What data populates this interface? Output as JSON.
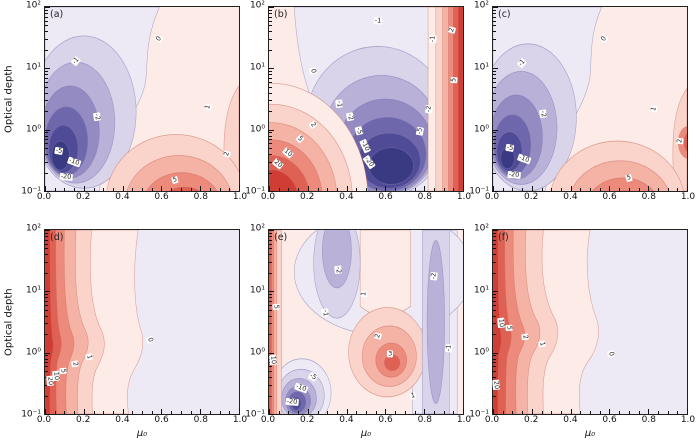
{
  "figure": {
    "y_axis_label": "Optical depth",
    "x_axis_label": "μ₀",
    "x_ticks": [
      "0.0",
      "0.2",
      "0.4",
      "0.6",
      "0.8",
      "1.0"
    ],
    "y_ticks": [
      "10²",
      "10¹",
      "10⁰",
      "10⁻¹"
    ],
    "panels": [
      {
        "letter": "(a)",
        "contour_labels": [
          {
            "v": "0",
            "mu0": 0.59,
            "tau": 30,
            "rot": -55
          },
          {
            "v": "-1",
            "mu0": 0.16,
            "tau": 13,
            "rot": -50
          },
          {
            "v": "-2",
            "mu0": 0.27,
            "tau": 1.6,
            "rot": 80
          },
          {
            "v": "-5",
            "mu0": 0.07,
            "tau": 0.45,
            "rot": 10
          },
          {
            "v": "-10",
            "mu0": 0.15,
            "tau": 0.3,
            "rot": 20
          },
          {
            "v": "-20",
            "mu0": 0.11,
            "tau": 0.17,
            "rot": 5
          },
          {
            "v": "1",
            "mu0": 0.84,
            "tau": 2.3,
            "rot": -75
          },
          {
            "v": "2",
            "mu0": 0.94,
            "tau": 0.4,
            "rot": -75
          },
          {
            "v": "5",
            "mu0": 0.67,
            "tau": 0.15,
            "rot": -15
          }
        ]
      },
      {
        "letter": "(b)",
        "contour_labels": [
          {
            "v": "20",
            "mu0": 0.045,
            "tau": 0.28,
            "rot": 40
          },
          {
            "v": "10",
            "mu0": 0.1,
            "tau": 0.42,
            "rot": 40
          },
          {
            "v": "5",
            "mu0": 0.16,
            "tau": 0.7,
            "rot": 45
          },
          {
            "v": "2",
            "mu0": 0.225,
            "tau": 1.2,
            "rot": 55
          },
          {
            "v": "0",
            "mu0": 0.225,
            "tau": 9,
            "rot": 80
          },
          {
            "v": "-1",
            "mu0": 0.36,
            "tau": 2.6,
            "rot": 85
          },
          {
            "v": "-1",
            "mu0": 0.56,
            "tau": 60,
            "rot": 5
          },
          {
            "v": "-2",
            "mu0": 0.42,
            "tau": 1.6,
            "rot": 80
          },
          {
            "v": "-5",
            "mu0": 0.465,
            "tau": 0.95,
            "rot": 75
          },
          {
            "v": "-10",
            "mu0": 0.495,
            "tau": 0.55,
            "rot": 65
          },
          {
            "v": "-20",
            "mu0": 0.515,
            "tau": 0.3,
            "rot": 55
          },
          {
            "v": "-5",
            "mu0": 0.78,
            "tau": 0.95,
            "rot": -80
          },
          {
            "v": "-2",
            "mu0": 0.825,
            "tau": 2.2,
            "rot": -85
          },
          {
            "v": "-1",
            "mu0": 0.845,
            "tau": 30,
            "rot": -85
          },
          {
            "v": "2",
            "mu0": 0.945,
            "tau": 42,
            "rot": -75
          },
          {
            "v": "5",
            "mu0": 0.955,
            "tau": 6.5,
            "rot": -85
          }
        ]
      },
      {
        "letter": "(c)",
        "contour_labels": [
          {
            "v": "0",
            "mu0": 0.57,
            "tau": 30,
            "rot": -55
          },
          {
            "v": "-1",
            "mu0": 0.15,
            "tau": 12,
            "rot": -50
          },
          {
            "v": "-2",
            "mu0": 0.26,
            "tau": 1.8,
            "rot": 80
          },
          {
            "v": "-5",
            "mu0": 0.09,
            "tau": 0.5,
            "rot": 10
          },
          {
            "v": "-10",
            "mu0": 0.16,
            "tau": 0.33,
            "rot": 20
          },
          {
            "v": "-20",
            "mu0": 0.11,
            "tau": 0.18,
            "rot": 5
          },
          {
            "v": "1",
            "mu0": 0.83,
            "tau": 2.2,
            "rot": -75
          },
          {
            "v": "2",
            "mu0": 0.965,
            "tau": 0.65,
            "rot": -85
          },
          {
            "v": "5",
            "mu0": 0.7,
            "tau": 0.16,
            "rot": -15
          }
        ]
      },
      {
        "letter": "(d)",
        "contour_labels": [
          {
            "v": "20",
            "mu0": 0.025,
            "tau": 0.35,
            "rot": 85
          },
          {
            "v": "10",
            "mu0": 0.055,
            "tau": 0.42,
            "rot": 85
          },
          {
            "v": "5",
            "mu0": 0.095,
            "tau": 0.5,
            "rot": 85
          },
          {
            "v": "2",
            "mu0": 0.155,
            "tau": 0.65,
            "rot": 80
          },
          {
            "v": "1",
            "mu0": 0.225,
            "tau": 0.85,
            "rot": 80
          },
          {
            "v": "0",
            "mu0": 0.54,
            "tau": 1.6,
            "rot": 70
          }
        ]
      },
      {
        "letter": "(e)",
        "contour_labels": [
          {
            "v": "5",
            "mu0": 0.035,
            "tau": 5.5,
            "rot": 85
          },
          {
            "v": "10",
            "mu0": 0.02,
            "tau": 0.75,
            "rot": 85
          },
          {
            "v": "-1",
            "mu0": 0.29,
            "tau": 4.5,
            "rot": 85
          },
          {
            "v": "-2",
            "mu0": 0.355,
            "tau": 22,
            "rot": 85
          },
          {
            "v": "-5",
            "mu0": 0.225,
            "tau": 0.4,
            "rot": 30
          },
          {
            "v": "-10",
            "mu0": 0.165,
            "tau": 0.27,
            "rot": 20
          },
          {
            "v": "-20",
            "mu0": 0.12,
            "tau": 0.155,
            "rot": 5
          },
          {
            "v": "1",
            "mu0": 0.49,
            "tau": 9,
            "rot": -85
          },
          {
            "v": "2",
            "mu0": 0.56,
            "tau": 1.9,
            "rot": -75
          },
          {
            "v": "3",
            "mu0": 0.625,
            "tau": 0.95,
            "rot": 0
          },
          {
            "v": "-2",
            "mu0": 0.85,
            "tau": 18,
            "rot": -85
          },
          {
            "v": "-1",
            "mu0": 0.93,
            "tau": 1.2,
            "rot": -85
          },
          {
            "v": "1",
            "mu0": 0.74,
            "tau": 0.2,
            "rot": -10
          }
        ]
      },
      {
        "letter": "(f)",
        "contour_labels": [
          {
            "v": "20",
            "mu0": 0.015,
            "tau": 0.3,
            "rot": 85
          },
          {
            "v": "10",
            "mu0": 0.04,
            "tau": 3.0,
            "rot": 85
          },
          {
            "v": "5",
            "mu0": 0.085,
            "tau": 2.5,
            "rot": 85
          },
          {
            "v": "2",
            "mu0": 0.165,
            "tau": 1.8,
            "rot": 80
          },
          {
            "v": "1",
            "mu0": 0.25,
            "tau": 1.4,
            "rot": 80
          },
          {
            "v": "0",
            "mu0": 0.61,
            "tau": 0.95,
            "rot": 75
          }
        ]
      }
    ]
  },
  "chart_data": [
    {
      "panel": "(a)",
      "type": "contour",
      "xlabel": "μ₀",
      "x_range": [
        0,
        1
      ],
      "ylabel": "Optical depth",
      "y_range": [
        0.1,
        100
      ],
      "y_scale": "log",
      "labeled_levels": [
        -20,
        -10,
        -5,
        -2,
        -1,
        0,
        1,
        2,
        5
      ],
      "palette": {
        "positive": "red",
        "negative": "blue-purple",
        "near_zero": "pale"
      },
      "features": [
        "negative lobe (−1 to −20) centered near μ₀≈0.05–0.2, τ≈0.2–1, extending up-left",
        "positive lobe (1 to 5) near μ₀≈0.6–0.9, τ<0.5",
        "zero contour runs from top edge at μ₀≈0.6 down toward bottom-left"
      ]
    },
    {
      "panel": "(b)",
      "type": "contour",
      "xlabel": "μ₀",
      "x_range": [
        0,
        1
      ],
      "ylabel": "Optical depth",
      "y_range": [
        0.1,
        100
      ],
      "y_scale": "log",
      "labeled_levels": [
        -20,
        -10,
        -5,
        -2,
        -1,
        0,
        2,
        5,
        10,
        20
      ],
      "palette": {
        "positive": "red",
        "negative": "blue-purple",
        "near_zero": "pale"
      },
      "features": [
        "strong positive core (5–20) in lower-left, μ₀<0.3, τ<1",
        "strong negative core (−5 to −20) at μ₀≈0.5–0.8, τ<1",
        "positive stripe (2–5) along right edge μ₀≈0.9–1.0, full height",
        "negative band (−1, −2) arching over the upper middle"
      ]
    },
    {
      "panel": "(c)",
      "type": "contour",
      "xlabel": "μ₀",
      "x_range": [
        0,
        1
      ],
      "ylabel": "Optical depth",
      "y_range": [
        0.1,
        100
      ],
      "y_scale": "log",
      "labeled_levels": [
        -20,
        -10,
        -5,
        -2,
        -1,
        0,
        1,
        2,
        5
      ],
      "palette": {
        "positive": "red",
        "negative": "blue-purple",
        "near_zero": "pale"
      },
      "features": [
        "similar to panel (a): negative lobe near μ₀≈0.05–0.2, τ≈0.2–1",
        "positive lobe (1–5) near μ₀≈0.6–0.9, τ<0.5, small maximum at right edge τ≈0.6",
        "zero contour from top edge μ₀≈0.57 to bottom-left"
      ]
    },
    {
      "panel": "(d)",
      "type": "contour",
      "xlabel": "μ₀",
      "x_range": [
        0,
        1
      ],
      "ylabel": "Optical depth",
      "y_range": [
        0.1,
        100
      ],
      "y_scale": "log",
      "labeled_levels": [
        0,
        1,
        2,
        5,
        10,
        20
      ],
      "palette": {
        "positive": "red",
        "near_zero": "pale"
      },
      "features": [
        "quasi-vertical bands decreasing from ≈20 at μ₀≈0 to 0 near μ₀≈0.5",
        "red bands bulge rightward (nose) around τ≈1–2",
        "field ≈0 (pale lavender) for μ₀>0.55"
      ]
    },
    {
      "panel": "(e)",
      "type": "contour",
      "xlabel": "μ₀",
      "x_range": [
        0,
        1
      ],
      "ylabel": "Optical depth",
      "y_range": [
        0.1,
        100
      ],
      "y_scale": "log",
      "labeled_levels": [
        -20,
        -10,
        -5,
        -2,
        -1,
        1,
        2,
        3,
        5,
        10
      ],
      "palette": {
        "positive": "red",
        "negative": "blue-purple",
        "near_zero": "pale"
      },
      "features": [
        "positive stripe (5–10) along the left edge, full height",
        "negative pocket (−5 to −20) near μ₀≈0.1–0.25, τ<0.4",
        "negative columns (−1, −2) near μ₀≈0.35 (upper) and μ₀≈0.8–0.9 (full height)",
        "positive cell (1–3) centered near μ₀≈0.6, τ≈1"
      ]
    },
    {
      "panel": "(f)",
      "type": "contour",
      "xlabel": "μ₀",
      "x_range": [
        0,
        1
      ],
      "ylabel": "Optical depth",
      "y_range": [
        0.1,
        100
      ],
      "y_scale": "log",
      "labeled_levels": [
        0,
        1,
        2,
        5,
        10,
        20
      ],
      "palette": {
        "positive": "red",
        "near_zero": "pale"
      },
      "features": [
        "similar to panel (d): vertical bands decreasing from ≈20 at μ₀≈0 to 0 near μ₀≈0.6",
        "red nose bulges right around τ≈1–3",
        "field ≈0 (pale lavender) for μ₀>0.6"
      ]
    }
  ]
}
